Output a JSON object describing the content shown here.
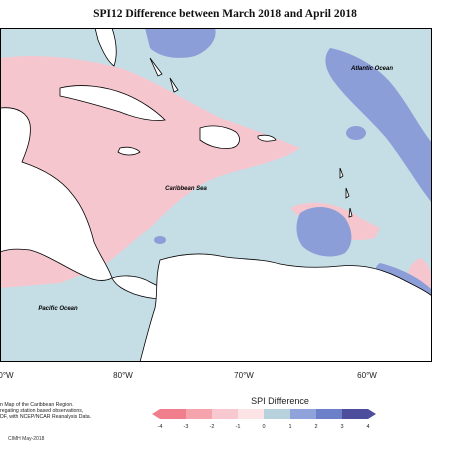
{
  "title": "SPI12 Difference between March 2018 and April 2018",
  "map": {
    "region": "Caribbean",
    "labels": {
      "atlantic": "Atlantic Ocean",
      "caribbean": "Caribbean Sea",
      "pacific": "Pacific Ocean"
    },
    "longitude_ticks": [
      "80°W",
      "70°W",
      "60°W"
    ],
    "longitude_tick_left_partial": "0°W",
    "colors": {
      "ocean_positive_light": "#c5dee6",
      "ocean_positive": "#8c9ed8",
      "ocean_negative_light": "#f6c6cf",
      "land": "#ffffff",
      "frame": "#000000"
    }
  },
  "footer": {
    "lines": [
      "n Map of the Caribbean Region.",
      "regating station based observations,",
      "DF, with NCEP/NCAR Reanalysis Data."
    ],
    "credit": "CIMH May-2018"
  },
  "legend": {
    "title": "SPI Difference",
    "ticks": [
      "-4",
      "-3",
      "-2",
      "-1",
      "0",
      "1",
      "2",
      "3",
      "4"
    ],
    "colors": [
      "#f07e8c",
      "#f5a3ad",
      "#f7c8cf",
      "#fbe3e6",
      "#dbe9ee",
      "#b7d2dc",
      "#8fa3da",
      "#6c80c9",
      "#4d4f9c"
    ]
  }
}
